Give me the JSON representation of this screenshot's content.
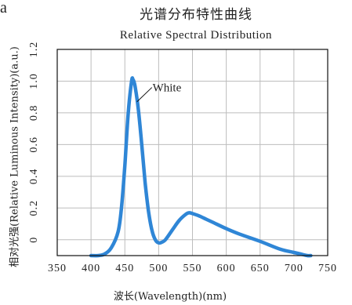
{
  "chart_data": {
    "type": "line",
    "title": "光谱分布特性曲线",
    "subtitle": "Relative Spectral Distribution",
    "xlabel": "波长(Wavelength)(nm)",
    "ylabel": "相对光强(Relative Luminous Intensity)(a.u.)",
    "xlim": [
      350,
      750
    ],
    "ylim": [
      -0.1,
      1.2
    ],
    "x_ticks": [
      "350",
      "400",
      "450",
      "500",
      "550",
      "600",
      "650",
      "700",
      "750"
    ],
    "y_ticks": [
      "0",
      "0.2",
      "0.4",
      "0.6",
      "0.8",
      "1.0",
      "1.2"
    ],
    "grid": true,
    "series": [
      {
        "name": "White",
        "color": "#2f86d6",
        "x": [
          400,
          410,
          420,
          430,
          440,
          445,
          450,
          455,
          460,
          462,
          465,
          470,
          475,
          480,
          485,
          490,
          495,
          500,
          505,
          510,
          520,
          530,
          540,
          545,
          550,
          560,
          570,
          580,
          600,
          620,
          650,
          680,
          700,
          710,
          720,
          725
        ],
        "y": [
          -0.1,
          -0.1,
          -0.09,
          -0.05,
          0.05,
          0.2,
          0.47,
          0.8,
          1.0,
          1.01,
          0.97,
          0.82,
          0.6,
          0.36,
          0.18,
          0.06,
          0.0,
          -0.02,
          -0.015,
          0.0,
          0.06,
          0.12,
          0.16,
          0.17,
          0.165,
          0.15,
          0.13,
          0.11,
          0.07,
          0.035,
          -0.01,
          -0.06,
          -0.08,
          -0.09,
          -0.1,
          -0.1
        ]
      }
    ],
    "annotation": "White"
  }
}
